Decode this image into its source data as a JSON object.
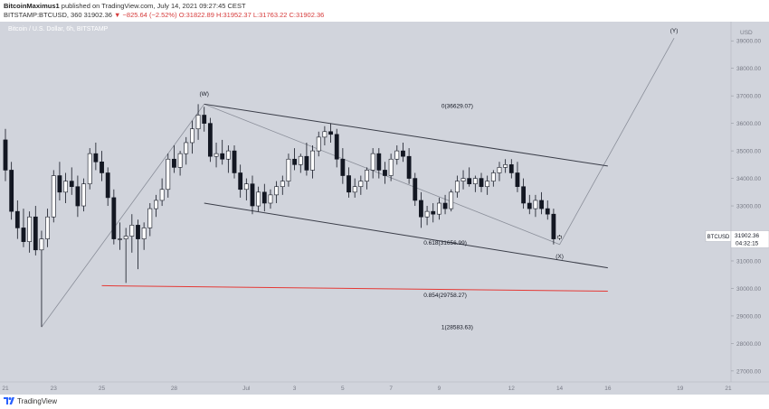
{
  "header": {
    "author": "BitcoinMaximus1",
    "published_text": "published on TradingView.com, July 14, 2021 09:27:45 CEST",
    "symbol_line": {
      "symbol": "BITSTAMP:BTCUSD, 360",
      "last": "31902.36",
      "change": "▼ −825.64 (−2.52%)",
      "open": "O:31822.89",
      "high": "H:31952.37",
      "low": "L:31763.22",
      "close": "C:31902.36"
    }
  },
  "watermark": "Bitcoin / U.S. Dollar, 6h, BITSTAMP",
  "footer": {
    "brand": "TradingView"
  },
  "price_tag": {
    "symbol": "BTCUSD",
    "price": "31902.36",
    "countdown": "04:32:15"
  },
  "colors": {
    "background": "#d1d4dc",
    "bull": "#ffffff",
    "bear": "#131722",
    "trendline": "#3a3d48",
    "wave_line": "#8a8e99",
    "support": "#e53935"
  },
  "chart_data": {
    "type": "candlestick",
    "y_axis": {
      "currency": "USD",
      "ylim": [
        26700,
        39500
      ],
      "ticks": [
        27000,
        28000,
        29000,
        30000,
        31000,
        32000,
        33000,
        34000,
        35000,
        36000,
        37000,
        38000,
        39000
      ],
      "tick_labels": [
        "27000.00",
        "28000.00",
        "29000.00",
        "30000.00",
        "31000.00",
        "32000.00",
        "33000.00",
        "34000.00",
        "35000.00",
        "36000.00",
        "37000.00",
        "38000.00",
        "39000.00"
      ]
    },
    "x_axis": {
      "tick_labels": [
        {
          "label": "21",
          "date": "2021-06-21"
        },
        {
          "label": "23",
          "date": "2021-06-23"
        },
        {
          "label": "25",
          "date": "2021-06-25"
        },
        {
          "label": "28",
          "date": "2021-06-28"
        },
        {
          "label": "Jul",
          "date": "2021-07-01"
        },
        {
          "label": "3",
          "date": "2021-07-03"
        },
        {
          "label": "5",
          "date": "2021-07-05"
        },
        {
          "label": "7",
          "date": "2021-07-07"
        },
        {
          "label": "9",
          "date": "2021-07-09"
        },
        {
          "label": "12",
          "date": "2021-07-12"
        },
        {
          "label": "14",
          "date": "2021-07-14"
        },
        {
          "label": "16",
          "date": "2021-07-16"
        },
        {
          "label": "19",
          "date": "2021-07-19"
        },
        {
          "label": "21",
          "date": "2021-07-21"
        }
      ]
    },
    "candles": [
      {
        "t": "2021-06-21T00:00",
        "o": 35400,
        "h": 35800,
        "l": 33900,
        "c": 34300
      },
      {
        "t": "2021-06-21T06:00",
        "o": 34300,
        "h": 34600,
        "l": 32500,
        "c": 32800
      },
      {
        "t": "2021-06-21T12:00",
        "o": 32800,
        "h": 33200,
        "l": 31800,
        "c": 32200
      },
      {
        "t": "2021-06-21T18:00",
        "o": 32200,
        "h": 32900,
        "l": 31500,
        "c": 31700
      },
      {
        "t": "2021-06-22T00:00",
        "o": 31700,
        "h": 32800,
        "l": 31300,
        "c": 32600
      },
      {
        "t": "2021-06-22T06:00",
        "o": 32600,
        "h": 33000,
        "l": 31200,
        "c": 31400
      },
      {
        "t": "2021-06-22T12:00",
        "o": 31400,
        "h": 32100,
        "l": 28600,
        "c": 31800
      },
      {
        "t": "2021-06-22T18:00",
        "o": 31800,
        "h": 32900,
        "l": 31500,
        "c": 32600
      },
      {
        "t": "2021-06-23T00:00",
        "o": 32600,
        "h": 34300,
        "l": 32400,
        "c": 34100
      },
      {
        "t": "2021-06-23T06:00",
        "o": 34100,
        "h": 34600,
        "l": 33200,
        "c": 33500
      },
      {
        "t": "2021-06-23T12:00",
        "o": 33500,
        "h": 34200,
        "l": 33100,
        "c": 33900
      },
      {
        "t": "2021-06-23T18:00",
        "o": 33900,
        "h": 34400,
        "l": 33400,
        "c": 33700
      },
      {
        "t": "2021-06-24T00:00",
        "o": 33700,
        "h": 34100,
        "l": 32600,
        "c": 33000
      },
      {
        "t": "2021-06-24T06:00",
        "o": 33000,
        "h": 34000,
        "l": 32800,
        "c": 33800
      },
      {
        "t": "2021-06-24T12:00",
        "o": 33800,
        "h": 35100,
        "l": 33600,
        "c": 34900
      },
      {
        "t": "2021-06-24T18:00",
        "o": 34900,
        "h": 35300,
        "l": 34300,
        "c": 34600
      },
      {
        "t": "2021-06-25T00:00",
        "o": 34600,
        "h": 35000,
        "l": 33900,
        "c": 34200
      },
      {
        "t": "2021-06-25T06:00",
        "o": 34200,
        "h": 34400,
        "l": 33000,
        "c": 33300
      },
      {
        "t": "2021-06-25T12:00",
        "o": 33300,
        "h": 33600,
        "l": 31600,
        "c": 31800
      },
      {
        "t": "2021-06-25T18:00",
        "o": 31800,
        "h": 32400,
        "l": 31400,
        "c": 31800
      },
      {
        "t": "2021-06-26T00:00",
        "o": 31800,
        "h": 32200,
        "l": 30200,
        "c": 31900
      },
      {
        "t": "2021-06-26T06:00",
        "o": 31900,
        "h": 32700,
        "l": 31300,
        "c": 32300
      },
      {
        "t": "2021-06-26T12:00",
        "o": 32300,
        "h": 32500,
        "l": 30700,
        "c": 31800
      },
      {
        "t": "2021-06-26T18:00",
        "o": 31800,
        "h": 32400,
        "l": 31400,
        "c": 32200
      },
      {
        "t": "2021-06-27T00:00",
        "o": 32200,
        "h": 33100,
        "l": 31900,
        "c": 32900
      },
      {
        "t": "2021-06-27T06:00",
        "o": 32900,
        "h": 33400,
        "l": 32600,
        "c": 33200
      },
      {
        "t": "2021-06-27T12:00",
        "o": 33200,
        "h": 34000,
        "l": 33000,
        "c": 33600
      },
      {
        "t": "2021-06-27T18:00",
        "o": 33600,
        "h": 34900,
        "l": 33300,
        "c": 34700
      },
      {
        "t": "2021-06-28T00:00",
        "o": 34700,
        "h": 35200,
        "l": 34200,
        "c": 34400
      },
      {
        "t": "2021-06-28T06:00",
        "o": 34400,
        "h": 35000,
        "l": 34100,
        "c": 34900
      },
      {
        "t": "2021-06-28T12:00",
        "o": 34900,
        "h": 35500,
        "l": 34500,
        "c": 35300
      },
      {
        "t": "2021-06-28T18:00",
        "o": 35300,
        "h": 36100,
        "l": 34900,
        "c": 35800
      },
      {
        "t": "2021-06-29T00:00",
        "o": 35800,
        "h": 36700,
        "l": 35400,
        "c": 36300
      },
      {
        "t": "2021-06-29T06:00",
        "o": 36300,
        "h": 36600,
        "l": 35700,
        "c": 36000
      },
      {
        "t": "2021-06-29T12:00",
        "o": 36000,
        "h": 36200,
        "l": 34600,
        "c": 34800
      },
      {
        "t": "2021-06-29T18:00",
        "o": 34800,
        "h": 35300,
        "l": 34400,
        "c": 34900
      },
      {
        "t": "2021-06-30T00:00",
        "o": 34900,
        "h": 35400,
        "l": 34500,
        "c": 34700
      },
      {
        "t": "2021-06-30T06:00",
        "o": 34700,
        "h": 35200,
        "l": 34200,
        "c": 35000
      },
      {
        "t": "2021-06-30T12:00",
        "o": 35000,
        "h": 35200,
        "l": 34000,
        "c": 34200
      },
      {
        "t": "2021-06-30T18:00",
        "o": 34200,
        "h": 34500,
        "l": 33300,
        "c": 33600
      },
      {
        "t": "2021-07-01T00:00",
        "o": 33600,
        "h": 34000,
        "l": 33200,
        "c": 33800
      },
      {
        "t": "2021-07-01T06:00",
        "o": 33800,
        "h": 34100,
        "l": 32700,
        "c": 33000
      },
      {
        "t": "2021-07-01T12:00",
        "o": 33000,
        "h": 33700,
        "l": 32800,
        "c": 33500
      },
      {
        "t": "2021-07-01T18:00",
        "o": 33500,
        "h": 33800,
        "l": 32800,
        "c": 33100
      },
      {
        "t": "2021-07-02T00:00",
        "o": 33100,
        "h": 33600,
        "l": 32900,
        "c": 33400
      },
      {
        "t": "2021-07-02T06:00",
        "o": 33400,
        "h": 33900,
        "l": 33100,
        "c": 33700
      },
      {
        "t": "2021-07-02T12:00",
        "o": 33700,
        "h": 34100,
        "l": 33400,
        "c": 33900
      },
      {
        "t": "2021-07-02T18:00",
        "o": 33900,
        "h": 34900,
        "l": 33700,
        "c": 34700
      },
      {
        "t": "2021-07-03T00:00",
        "o": 34700,
        "h": 35100,
        "l": 34300,
        "c": 34500
      },
      {
        "t": "2021-07-03T06:00",
        "o": 34500,
        "h": 34900,
        "l": 34200,
        "c": 34800
      },
      {
        "t": "2021-07-03T12:00",
        "o": 34800,
        "h": 35300,
        "l": 34100,
        "c": 34300
      },
      {
        "t": "2021-07-03T18:00",
        "o": 34300,
        "h": 35200,
        "l": 34000,
        "c": 35000
      },
      {
        "t": "2021-07-04T00:00",
        "o": 35000,
        "h": 35700,
        "l": 34800,
        "c": 35500
      },
      {
        "t": "2021-07-04T06:00",
        "o": 35500,
        "h": 35900,
        "l": 35200,
        "c": 35700
      },
      {
        "t": "2021-07-04T12:00",
        "o": 35700,
        "h": 36000,
        "l": 35300,
        "c": 35600
      },
      {
        "t": "2021-07-04T18:00",
        "o": 35600,
        "h": 35800,
        "l": 34400,
        "c": 34700
      },
      {
        "t": "2021-07-05T00:00",
        "o": 34700,
        "h": 35100,
        "l": 33800,
        "c": 34100
      },
      {
        "t": "2021-07-05T06:00",
        "o": 34100,
        "h": 34400,
        "l": 33300,
        "c": 33500
      },
      {
        "t": "2021-07-05T12:00",
        "o": 33500,
        "h": 34000,
        "l": 33300,
        "c": 33700
      },
      {
        "t": "2021-07-05T18:00",
        "o": 33700,
        "h": 34100,
        "l": 33400,
        "c": 33900
      },
      {
        "t": "2021-07-06T00:00",
        "o": 33900,
        "h": 34400,
        "l": 33600,
        "c": 34300
      },
      {
        "t": "2021-07-06T06:00",
        "o": 34300,
        "h": 35100,
        "l": 34000,
        "c": 34900
      },
      {
        "t": "2021-07-06T12:00",
        "o": 34900,
        "h": 35100,
        "l": 34000,
        "c": 34300
      },
      {
        "t": "2021-07-06T18:00",
        "o": 34300,
        "h": 34600,
        "l": 33800,
        "c": 34100
      },
      {
        "t": "2021-07-07T00:00",
        "o": 34100,
        "h": 34900,
        "l": 33900,
        "c": 34700
      },
      {
        "t": "2021-07-07T06:00",
        "o": 34700,
        "h": 35200,
        "l": 34500,
        "c": 35000
      },
      {
        "t": "2021-07-07T12:00",
        "o": 35000,
        "h": 35300,
        "l": 34600,
        "c": 34800
      },
      {
        "t": "2021-07-07T18:00",
        "o": 34800,
        "h": 35100,
        "l": 33800,
        "c": 34000
      },
      {
        "t": "2021-07-08T00:00",
        "o": 34000,
        "h": 34200,
        "l": 33000,
        "c": 33200
      },
      {
        "t": "2021-07-08T06:00",
        "o": 33200,
        "h": 33500,
        "l": 32200,
        "c": 32600
      },
      {
        "t": "2021-07-08T12:00",
        "o": 32600,
        "h": 33000,
        "l": 32300,
        "c": 32800
      },
      {
        "t": "2021-07-08T18:00",
        "o": 32800,
        "h": 33100,
        "l": 32400,
        "c": 32700
      },
      {
        "t": "2021-07-09T00:00",
        "o": 32700,
        "h": 33300,
        "l": 32500,
        "c": 33100
      },
      {
        "t": "2021-07-09T06:00",
        "o": 33100,
        "h": 33400,
        "l": 32700,
        "c": 32900
      },
      {
        "t": "2021-07-09T12:00",
        "o": 32900,
        "h": 33600,
        "l": 32800,
        "c": 33500
      },
      {
        "t": "2021-07-09T18:00",
        "o": 33500,
        "h": 34100,
        "l": 33300,
        "c": 33900
      },
      {
        "t": "2021-07-10T00:00",
        "o": 33900,
        "h": 34300,
        "l": 33600,
        "c": 34000
      },
      {
        "t": "2021-07-10T06:00",
        "o": 34000,
        "h": 34400,
        "l": 33700,
        "c": 33800
      },
      {
        "t": "2021-07-10T12:00",
        "o": 33800,
        "h": 34100,
        "l": 33500,
        "c": 34000
      },
      {
        "t": "2021-07-10T18:00",
        "o": 34000,
        "h": 34200,
        "l": 33500,
        "c": 33700
      },
      {
        "t": "2021-07-11T00:00",
        "o": 33700,
        "h": 34100,
        "l": 33400,
        "c": 33900
      },
      {
        "t": "2021-07-11T06:00",
        "o": 33900,
        "h": 34300,
        "l": 33700,
        "c": 34200
      },
      {
        "t": "2021-07-11T12:00",
        "o": 34200,
        "h": 34600,
        "l": 33900,
        "c": 34400
      },
      {
        "t": "2021-07-11T18:00",
        "o": 34400,
        "h": 34700,
        "l": 34200,
        "c": 34500
      },
      {
        "t": "2021-07-12T00:00",
        "o": 34500,
        "h": 34700,
        "l": 34000,
        "c": 34200
      },
      {
        "t": "2021-07-12T06:00",
        "o": 34200,
        "h": 34600,
        "l": 33500,
        "c": 33700
      },
      {
        "t": "2021-07-12T12:00",
        "o": 33700,
        "h": 34000,
        "l": 32900,
        "c": 33100
      },
      {
        "t": "2021-07-12T18:00",
        "o": 33100,
        "h": 33400,
        "l": 32700,
        "c": 32900
      },
      {
        "t": "2021-07-13T00:00",
        "o": 32900,
        "h": 33400,
        "l": 32600,
        "c": 33200
      },
      {
        "t": "2021-07-13T06:00",
        "o": 33200,
        "h": 33500,
        "l": 32700,
        "c": 32900
      },
      {
        "t": "2021-07-13T12:00",
        "o": 32900,
        "h": 33200,
        "l": 32500,
        "c": 32700
      },
      {
        "t": "2021-07-13T18:00",
        "o": 32700,
        "h": 32900,
        "l": 31600,
        "c": 31800
      },
      {
        "t": "2021-07-14T00:00",
        "o": 31822.89,
        "h": 31952.37,
        "l": 31763.22,
        "c": 31902.36
      }
    ],
    "annotations": [
      {
        "label": "(W)",
        "date": "2021-06-29T06:00",
        "price": 37000
      },
      {
        "label": "(X)",
        "date": "2021-07-14T00:00",
        "price": 31100
      },
      {
        "label": "(Y)",
        "date": "2021-07-18T18:00",
        "price": 39300
      }
    ],
    "wave_path": [
      {
        "date": "2021-06-22T12:00",
        "price": 28600
      },
      {
        "date": "2021-06-29T06:00",
        "price": 36700
      },
      {
        "date": "2021-07-14T00:00",
        "price": 31600
      },
      {
        "date": "2021-07-18T18:00",
        "price": 39100
      }
    ],
    "channel_lines": [
      {
        "name": "upper",
        "from": {
          "date": "2021-06-29T06:00",
          "price": 36700
        },
        "to": {
          "date": "2021-07-16T00:00",
          "price": 34450
        }
      },
      {
        "name": "lower",
        "from": {
          "date": "2021-06-29T06:00",
          "price": 33100
        },
        "to": {
          "date": "2021-07-16T00:00",
          "price": 30750
        }
      }
    ],
    "horizontal_line": {
      "from": {
        "date": "2021-06-25T00:00",
        "price": 30100
      },
      "to": {
        "date": "2021-07-16T00:00",
        "price": 29900
      }
    },
    "fib_labels": [
      {
        "text": "0(36629.07)",
        "date": "2021-07-09T18:00",
        "price": 36629.07
      },
      {
        "text": "0.618(31656.99)",
        "date": "2021-07-09T06:00",
        "price": 31656.99
      },
      {
        "text": "0.854(29758.27)",
        "date": "2021-07-09T06:00",
        "price": 29758.27
      },
      {
        "text": "1(28583.63)",
        "date": "2021-07-09T18:00",
        "price": 28583.63
      }
    ]
  }
}
